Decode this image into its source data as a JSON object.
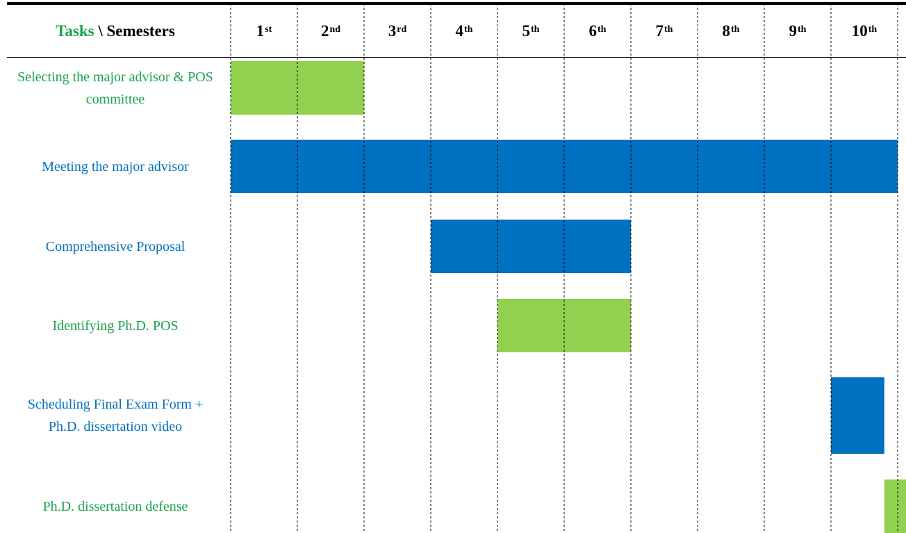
{
  "chart_data": {
    "type": "gantt",
    "header": {
      "tasks_word": "Tasks",
      "separator": " \\ Semesters"
    },
    "columns": [
      {
        "num": "1",
        "suffix": "st"
      },
      {
        "num": "2",
        "suffix": "nd"
      },
      {
        "num": "3",
        "suffix": "rd"
      },
      {
        "num": "4",
        "suffix": "th"
      },
      {
        "num": "5",
        "suffix": "th"
      },
      {
        "num": "6",
        "suffix": "th"
      },
      {
        "num": "7",
        "suffix": "th"
      },
      {
        "num": "8",
        "suffix": "th"
      },
      {
        "num": "9",
        "suffix": "th"
      },
      {
        "num": "10",
        "suffix": "th"
      }
    ],
    "x_unit": "semester",
    "xlim": [
      0,
      10
    ],
    "tasks": [
      {
        "label": "Selecting the major advisor & POS committee",
        "start": 0,
        "end": 2,
        "color": "#92d050",
        "label_color": "#1aa34a"
      },
      {
        "label": "Meeting the major advisor",
        "start": 0,
        "end": 10,
        "color": "#0070c0",
        "label_color": "#0070c0"
      },
      {
        "label": "Comprehensive Proposal",
        "start": 3,
        "end": 6,
        "color": "#0070c0",
        "label_color": "#0070c0"
      },
      {
        "label": "Identifying Ph.D. POS",
        "start": 4,
        "end": 6,
        "color": "#92d050",
        "label_color": "#1aa34a"
      },
      {
        "label": "Scheduling Final Exam Form + Ph.D. dissertation video",
        "start": 9,
        "end": 9.8,
        "color": "#0070c0",
        "label_color": "#0070c0"
      },
      {
        "label": "Ph.D. dissertation defense",
        "start": 9.8,
        "end": 10.15,
        "color": "#92d050",
        "label_color": "#1aa34a"
      }
    ],
    "gridlines": "dashed-vertical",
    "legend": "none"
  }
}
